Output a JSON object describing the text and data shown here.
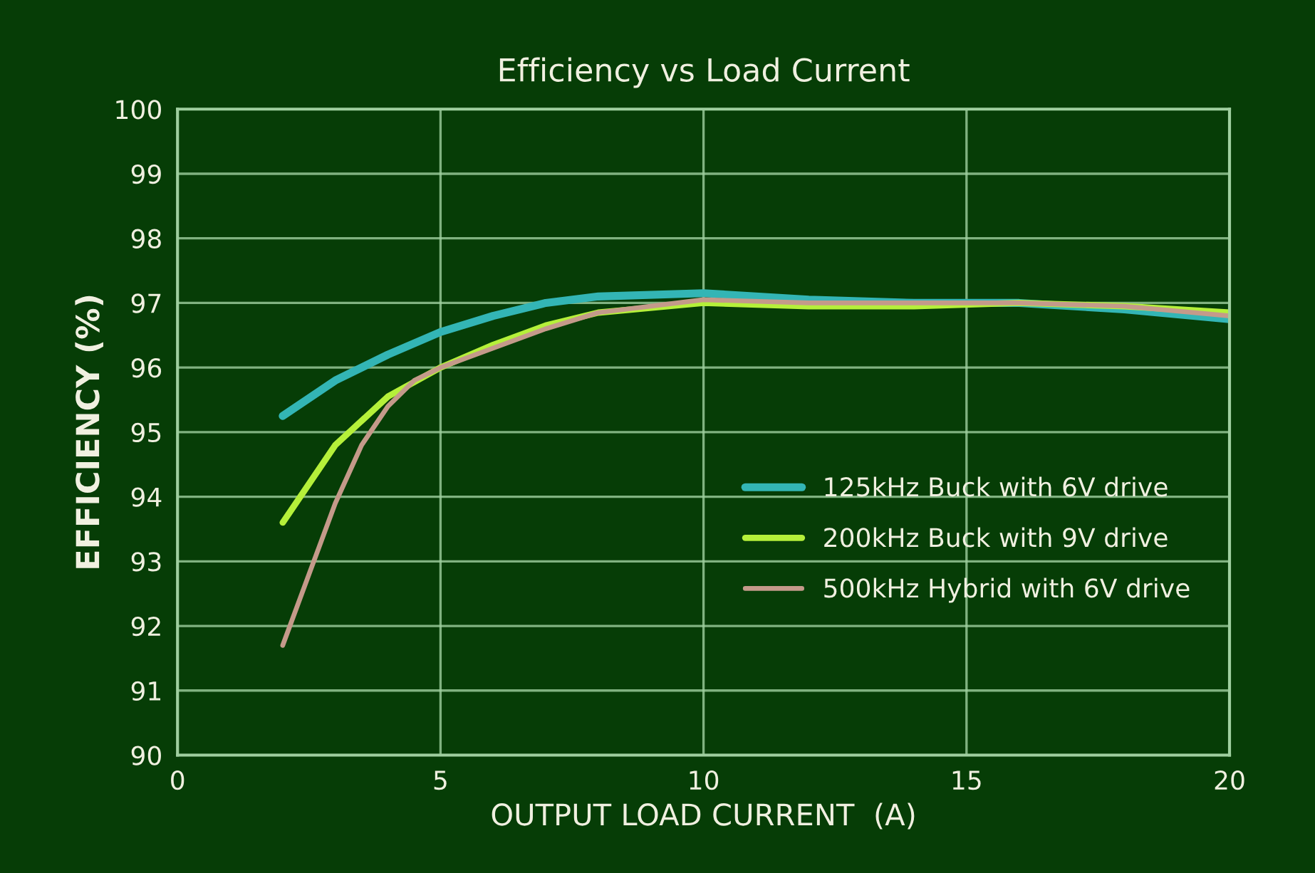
{
  "chart_data": {
    "type": "line",
    "title": "Efficiency vs Load Current",
    "xlabel": "OUTPUT LOAD CURRENT  (A)",
    "ylabel": "EFFICIENCY (%)",
    "xlim": [
      0,
      20
    ],
    "xticks": [
      0,
      5,
      10,
      15,
      20
    ],
    "ylim": [
      90,
      100
    ],
    "yticks": [
      90,
      91,
      92,
      93,
      94,
      95,
      96,
      97,
      98,
      99,
      100
    ],
    "grid": true,
    "legend": "bottom right",
    "marker": "none",
    "line_style": "solid",
    "series": [
      {
        "name": "125kHz Buck with 6V drive",
        "color": "#33b5b5",
        "x": [
          2,
          3,
          4,
          5,
          6,
          7,
          8,
          10,
          12,
          14,
          16,
          18,
          20
        ],
        "values": [
          95.25,
          95.8,
          96.2,
          96.55,
          96.8,
          97.0,
          97.1,
          97.15,
          97.05,
          97.0,
          97.0,
          96.9,
          96.75
        ]
      },
      {
        "name": "200kHz Buck with 9V drive",
        "color": "#b5f03a",
        "x": [
          2,
          2.5,
          3,
          4,
          5,
          6,
          7,
          8,
          10,
          12,
          14,
          16,
          18,
          20
        ],
        "values": [
          93.6,
          94.2,
          94.8,
          95.55,
          96.0,
          96.35,
          96.65,
          96.85,
          97.0,
          96.95,
          96.95,
          97.0,
          96.95,
          96.85
        ]
      },
      {
        "name": "500kHz Hybrid with 6V drive",
        "color": "#c49a8a",
        "x": [
          2,
          2.5,
          3,
          3.5,
          4,
          4.5,
          5,
          6,
          7,
          8,
          10,
          12,
          14,
          16,
          18,
          20
        ],
        "values": [
          91.7,
          92.8,
          93.9,
          94.8,
          95.4,
          95.8,
          96.0,
          96.3,
          96.6,
          96.85,
          97.05,
          97.0,
          97.0,
          97.0,
          96.95,
          96.8
        ]
      }
    ]
  }
}
